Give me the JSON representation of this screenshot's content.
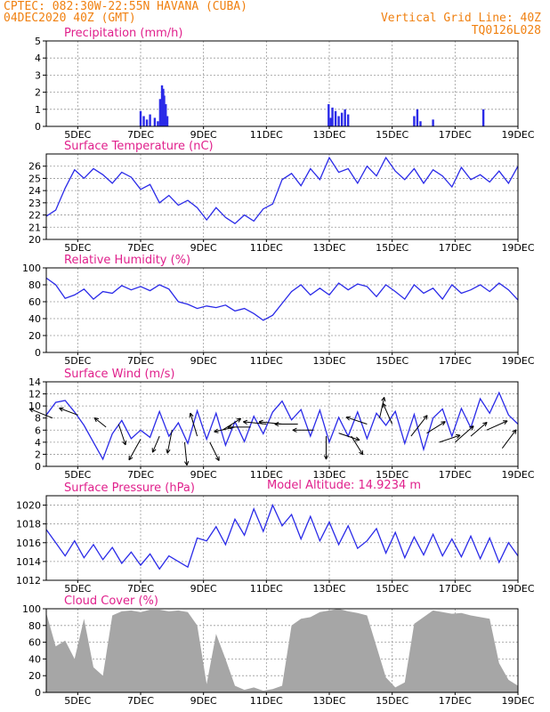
{
  "header": {
    "line1": "CPTEC:   082:30W-22:55N   HAVANA (CUBA)",
    "line2": "04DEC2020 40Z (GMT)",
    "grid_note": "Vertical Grid Line: 40Z",
    "run_id": "TQ0126L028",
    "text_color": "#f08010"
  },
  "colors": {
    "series": "#2a2ae8",
    "cloud": "#a6a6a6",
    "title": "#e0208c",
    "axis": "#000000",
    "grid": "#999999"
  },
  "model_altitude": "Model Altitude: 14.9234 m",
  "chart_data": [
    {
      "type": "bar",
      "id": "precip",
      "title": "Precipitation (mm/h)",
      "ylim": [
        0,
        5
      ],
      "yticks": [
        0,
        1,
        2,
        3,
        4,
        5
      ],
      "x": [
        7.0,
        7.1,
        7.2,
        7.3,
        7.45,
        7.55,
        7.62,
        7.68,
        7.72,
        7.75,
        7.8,
        7.85,
        12.98,
        13.05,
        13.1,
        13.2,
        13.3,
        13.4,
        13.5,
        13.6,
        15.7,
        15.8,
        15.9,
        16.3,
        17.9
      ],
      "values": [
        0.9,
        0.6,
        0.4,
        0.7,
        0.5,
        0.3,
        1.6,
        2.4,
        2.2,
        1.8,
        1.3,
        0.6,
        1.3,
        0.5,
        1.1,
        0.9,
        0.6,
        0.8,
        1.0,
        0.7,
        0.6,
        1.0,
        0.3,
        0.4,
        1.0
      ]
    },
    {
      "type": "line",
      "id": "temp",
      "title": "Surface Temperature (nC)",
      "ylim": [
        20,
        27
      ],
      "yticks": [
        20,
        21,
        22,
        23,
        24,
        25,
        26
      ],
      "x": [
        4.0,
        4.3,
        4.6,
        4.9,
        5.2,
        5.5,
        5.8,
        6.1,
        6.4,
        6.7,
        7.0,
        7.3,
        7.6,
        7.9,
        8.2,
        8.5,
        8.8,
        9.1,
        9.4,
        9.7,
        10.0,
        10.3,
        10.6,
        10.9,
        11.2,
        11.5,
        11.8,
        12.1,
        12.4,
        12.7,
        13.0,
        13.3,
        13.6,
        13.9,
        14.2,
        14.5,
        14.8,
        15.1,
        15.4,
        15.7,
        16.0,
        16.3,
        16.6,
        16.9,
        17.2,
        17.5,
        17.8,
        18.1,
        18.4,
        18.7,
        19.0
      ],
      "values": [
        21.9,
        22.4,
        24.2,
        25.7,
        25.0,
        25.8,
        25.3,
        24.6,
        25.5,
        25.1,
        24.1,
        24.5,
        23.0,
        23.6,
        22.8,
        23.2,
        22.6,
        21.6,
        22.6,
        21.8,
        21.3,
        22.0,
        21.5,
        22.5,
        22.9,
        24.9,
        25.4,
        24.4,
        25.8,
        24.9,
        26.7,
        25.5,
        25.8,
        24.6,
        26.0,
        25.2,
        26.7,
        25.6,
        24.9,
        25.8,
        24.6,
        25.7,
        25.2,
        24.3,
        25.9,
        24.9,
        25.3,
        24.7,
        25.6,
        24.6,
        26.0
      ]
    },
    {
      "type": "line",
      "id": "rh",
      "title": "Relative Humidity (%)",
      "ylim": [
        0,
        100
      ],
      "yticks": [
        0,
        20,
        40,
        60,
        80,
        100
      ],
      "x": [
        4.0,
        4.3,
        4.6,
        4.9,
        5.2,
        5.5,
        5.8,
        6.1,
        6.4,
        6.7,
        7.0,
        7.3,
        7.6,
        7.9,
        8.2,
        8.5,
        8.8,
        9.1,
        9.4,
        9.7,
        10.0,
        10.3,
        10.6,
        10.9,
        11.2,
        11.5,
        11.8,
        12.1,
        12.4,
        12.7,
        13.0,
        13.3,
        13.6,
        13.9,
        14.2,
        14.5,
        14.8,
        15.1,
        15.4,
        15.7,
        16.0,
        16.3,
        16.6,
        16.9,
        17.2,
        17.5,
        17.8,
        18.1,
        18.4,
        18.7,
        19.0
      ],
      "values": [
        88,
        80,
        64,
        68,
        75,
        63,
        72,
        70,
        79,
        74,
        78,
        73,
        80,
        75,
        60,
        57,
        52,
        55,
        53,
        56,
        49,
        52,
        46,
        38,
        44,
        58,
        72,
        80,
        68,
        76,
        68,
        82,
        74,
        81,
        78,
        66,
        80,
        72,
        63,
        80,
        70,
        76,
        63,
        80,
        70,
        74,
        80,
        72,
        82,
        74,
        62
      ]
    },
    {
      "type": "line",
      "id": "wind",
      "title": "Surface Wind (m/s)",
      "ylim": [
        0,
        14
      ],
      "yticks": [
        0,
        2,
        4,
        6,
        8,
        10,
        12,
        14
      ],
      "x": [
        4.0,
        4.3,
        4.6,
        4.9,
        5.2,
        5.5,
        5.8,
        6.1,
        6.4,
        6.7,
        7.0,
        7.3,
        7.6,
        7.9,
        8.2,
        8.5,
        8.8,
        9.1,
        9.4,
        9.7,
        10.0,
        10.3,
        10.6,
        10.9,
        11.2,
        11.5,
        11.8,
        12.1,
        12.4,
        12.7,
        13.0,
        13.3,
        13.6,
        13.9,
        14.2,
        14.5,
        14.8,
        15.1,
        15.4,
        15.7,
        16.0,
        16.3,
        16.6,
        16.9,
        17.2,
        17.5,
        17.8,
        18.1,
        18.4,
        18.7,
        19.0
      ],
      "values": [
        8.5,
        10.6,
        10.9,
        9.0,
        6.8,
        4.0,
        1.2,
        5.4,
        7.6,
        4.6,
        6.0,
        4.8,
        9.1,
        5.0,
        7.2,
        3.8,
        9.2,
        4.5,
        8.8,
        3.5,
        7.4,
        4.1,
        8.3,
        5.4,
        9.0,
        10.8,
        7.7,
        9.4,
        5.0,
        9.3,
        4.0,
        8.1,
        5.0,
        9.0,
        4.6,
        8.8,
        6.8,
        9.1,
        3.8,
        8.6,
        2.8,
        8.0,
        9.5,
        5.0,
        9.6,
        6.4,
        11.2,
        8.8,
        12.2,
        8.5,
        7.0
      ]
    },
    {
      "type": "line",
      "id": "pres",
      "title": "Surface Pressure (hPa)",
      "ylim": [
        1012,
        1021
      ],
      "yticks": [
        1012,
        1014,
        1016,
        1018,
        1020
      ],
      "x": [
        4.0,
        4.3,
        4.6,
        4.9,
        5.2,
        5.5,
        5.8,
        6.1,
        6.4,
        6.7,
        7.0,
        7.3,
        7.6,
        7.9,
        8.2,
        8.5,
        8.8,
        9.1,
        9.4,
        9.7,
        10.0,
        10.3,
        10.6,
        10.9,
        11.2,
        11.5,
        11.8,
        12.1,
        12.4,
        12.7,
        13.0,
        13.3,
        13.6,
        13.9,
        14.2,
        14.5,
        14.8,
        15.1,
        15.4,
        15.7,
        16.0,
        16.3,
        16.6,
        16.9,
        17.2,
        17.5,
        17.8,
        18.1,
        18.4,
        18.7,
        19.0
      ],
      "values": [
        1017.4,
        1016.0,
        1014.6,
        1016.2,
        1014.4,
        1015.8,
        1014.2,
        1015.5,
        1013.8,
        1015.0,
        1013.6,
        1014.8,
        1013.2,
        1014.6,
        1014.0,
        1013.4,
        1016.5,
        1016.2,
        1017.7,
        1015.8,
        1018.5,
        1016.8,
        1019.6,
        1017.2,
        1020.0,
        1017.8,
        1019.0,
        1016.4,
        1018.8,
        1016.2,
        1018.2,
        1015.8,
        1017.8,
        1015.4,
        1016.2,
        1017.5,
        1014.9,
        1017.1,
        1014.4,
        1016.6,
        1014.7,
        1016.9,
        1014.6,
        1016.4,
        1014.5,
        1016.7,
        1014.3,
        1016.5,
        1013.9,
        1016.0,
        1014.6
      ]
    },
    {
      "type": "area",
      "id": "cloud",
      "title": "Cloud Cover (%)",
      "ylim": [
        0,
        100
      ],
      "yticks": [
        0,
        20,
        40,
        60,
        80,
        100
      ],
      "x": [
        4.0,
        4.3,
        4.6,
        4.9,
        5.2,
        5.5,
        5.8,
        6.1,
        6.4,
        6.7,
        7.0,
        7.3,
        7.6,
        7.9,
        8.2,
        8.5,
        8.8,
        9.1,
        9.4,
        9.7,
        10.0,
        10.3,
        10.6,
        10.9,
        11.2,
        11.5,
        11.8,
        12.1,
        12.4,
        12.7,
        13.0,
        13.3,
        13.6,
        13.9,
        14.2,
        14.5,
        14.8,
        15.1,
        15.4,
        15.7,
        16.0,
        16.3,
        16.6,
        16.9,
        17.2,
        17.5,
        17.8,
        18.1,
        18.4,
        18.7,
        19.0
      ],
      "values": [
        95,
        55,
        62,
        40,
        88,
        30,
        20,
        92,
        97,
        98,
        96,
        99,
        99,
        97,
        98,
        96,
        80,
        10,
        70,
        40,
        8,
        3,
        6,
        2,
        4,
        8,
        80,
        88,
        90,
        96,
        98,
        100,
        97,
        95,
        92,
        55,
        18,
        6,
        12,
        82,
        90,
        98,
        96,
        94,
        95,
        92,
        90,
        88,
        35,
        15,
        8
      ]
    }
  ],
  "x_tick_labels": [
    "5DEC",
    "7DEC",
    "9DEC",
    "11DEC",
    "13DEC",
    "15DEC",
    "17DEC",
    "19DEC"
  ],
  "x_tick_values": [
    5,
    7,
    9,
    11,
    13,
    15,
    17,
    19
  ],
  "x_range": [
    4.0,
    19.0
  ],
  "wind_barbs": {
    "note": "arrows pointing direction wind blows to",
    "x": [
      4.2,
      5.0,
      5.9,
      6.3,
      7.0,
      7.6,
      8.0,
      8.4,
      8.8,
      9.2,
      9.6,
      10.0,
      10.5,
      11.0,
      11.5,
      12.0,
      12.5,
      12.9,
      13.3,
      13.7,
      14.2,
      14.6,
      15.0,
      15.6,
      16.1,
      16.5,
      17.0,
      17.5,
      18.0,
      18.5
    ],
    "y": [
      8.0,
      8.5,
      6.5,
      7.0,
      4.5,
      5.0,
      6.0,
      4.0,
      5.0,
      4.0,
      6.0,
      6.5,
      6.5,
      7.0,
      7.0,
      7.0,
      6.0,
      5.0,
      5.5,
      5.0,
      7.0,
      8.0,
      7.0,
      5.0,
      5.5,
      4.0,
      4.0,
      5.0,
      6.0,
      3.0
    ],
    "u": [
      -1.0,
      -0.8,
      -0.5,
      0.3,
      -0.5,
      -0.3,
      -0.2,
      0.1,
      -0.3,
      0.4,
      0.8,
      -0.9,
      -1.0,
      -1.0,
      -1.0,
      -1.0,
      -0.9,
      0.0,
      0.9,
      0.5,
      -0.9,
      0.2,
      -0.4,
      0.7,
      0.8,
      0.9,
      0.8,
      0.7,
      0.9,
      0.6
    ],
    "v": [
      0.4,
      0.3,
      0.4,
      -0.9,
      -0.9,
      -0.7,
      -1.0,
      -1.0,
      1.0,
      -0.8,
      0.5,
      -0.2,
      0.0,
      0.1,
      0.1,
      0.0,
      0.0,
      -1.0,
      -0.3,
      -0.8,
      0.3,
      0.9,
      0.9,
      0.9,
      0.5,
      0.3,
      0.7,
      0.6,
      0.4,
      0.8
    ]
  }
}
